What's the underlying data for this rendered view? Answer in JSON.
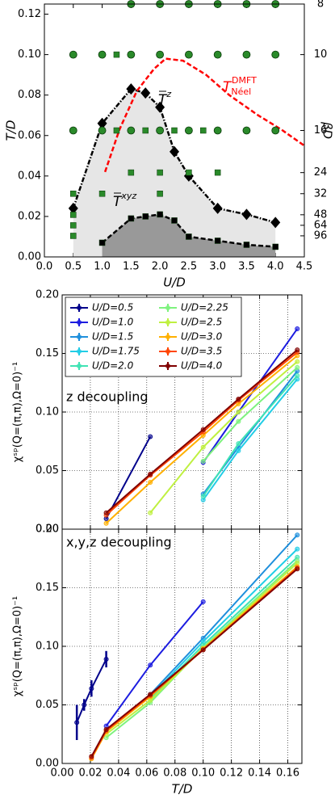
{
  "chart_data": [
    {
      "type": "line",
      "xlabel": "U/D",
      "ylabel": "T/D",
      "y2label": "βD",
      "xlim": [
        0,
        4.5
      ],
      "ylim": [
        0,
        0.125
      ],
      "grid": false,
      "xticks": [
        {
          "value": 0,
          "label": "0.0"
        },
        {
          "value": 0.5,
          "label": "0.5"
        },
        {
          "value": 1,
          "label": "1.0"
        },
        {
          "value": 1.5,
          "label": "1.5"
        },
        {
          "value": 2,
          "label": "2.0"
        },
        {
          "value": 2.5,
          "label": "2.5"
        },
        {
          "value": 3,
          "label": "3.0"
        },
        {
          "value": 3.5,
          "label": "3.5"
        },
        {
          "value": 4,
          "label": "4.0"
        },
        {
          "value": 4.5,
          "label": "4.5"
        }
      ],
      "yticks": [
        {
          "value": 0,
          "label": "0.00"
        },
        {
          "value": 0.02,
          "label": "0.02"
        },
        {
          "value": 0.04,
          "label": "0.04"
        },
        {
          "value": 0.06,
          "label": "0.06"
        },
        {
          "value": 0.08,
          "label": "0.08"
        },
        {
          "value": 0.1,
          "label": "0.10"
        },
        {
          "value": 0.12,
          "label": "0.12"
        }
      ],
      "y2ticks": [
        8,
        10,
        16,
        24,
        32,
        48,
        64,
        96
      ],
      "y2scale": "inverse",
      "annotations": [
        {
          "text": "T",
          "sup": "z",
          "overline": true
        },
        {
          "text": "T",
          "sup": "xyz",
          "overline": true
        },
        {
          "text": "T",
          "sup": "DMFT",
          "sub": "Néel",
          "color": "#ff0000"
        }
      ],
      "series": [
        {
          "x": [
            0.5,
            1.0,
            1.5,
            1.75,
            2.0,
            2.25,
            2.5,
            3.0,
            3.5,
            4.0
          ],
          "values": [
            0.024,
            0.066,
            0.083,
            0.081,
            0.074,
            0.052,
            0.04,
            0.024,
            0.021,
            0.017
          ],
          "color": "#000000",
          "linestyle": "dashdot",
          "marker": "diamond",
          "fill": "#e6e6e6"
        },
        {
          "x": [
            1.0,
            1.5,
            1.75,
            2.0,
            2.25,
            2.5,
            3.0,
            3.5,
            4.0
          ],
          "values": [
            0.007,
            0.019,
            0.02,
            0.021,
            0.018,
            0.01,
            0.008,
            0.006,
            0.005
          ],
          "color": "#000000",
          "linestyle": "dashed",
          "marker": "square",
          "fill": "#999999"
        },
        {
          "x": [
            1.05,
            1.3,
            1.6,
            1.9,
            2.1,
            2.4,
            2.8,
            3.2,
            3.7,
            4.1,
            4.5
          ],
          "values": [
            0.042,
            0.063,
            0.082,
            0.093,
            0.098,
            0.097,
            0.09,
            0.08,
            0.07,
            0.063,
            0.055
          ],
          "color": "#ff0000",
          "linestyle": "dashed",
          "marker": "none"
        },
        {
          "x": [
            1.5,
            2.0,
            2.5,
            3.0,
            3.5,
            4.0,
            0.5,
            1.0,
            1.5,
            2.0,
            2.5,
            3.0,
            3.5,
            4.0,
            0.5,
            1.0,
            1.5,
            2.0,
            2.5,
            3.0,
            3.5,
            4.0
          ],
          "values": [
            0.125,
            0.125,
            0.125,
            0.125,
            0.125,
            0.125,
            0.1,
            0.1,
            0.1,
            0.1,
            0.1,
            0.1,
            0.1,
            0.1,
            0.0625,
            0.0625,
            0.0625,
            0.0625,
            0.0625,
            0.0625,
            0.0625,
            0.0625
          ],
          "color": "#2a8a2a",
          "linestyle": "none",
          "marker": "octagon"
        },
        {
          "x": [
            1.25,
            1.25,
            1.75,
            2.25,
            2.75,
            1.5,
            2.0,
            2.5,
            3.0,
            0.5,
            1.0,
            2.0,
            0.5,
            0.5,
            0.5
          ],
          "values": [
            0.1,
            0.0625,
            0.0625,
            0.0625,
            0.0625,
            0.0417,
            0.0417,
            0.0417,
            0.0417,
            0.03125,
            0.03125,
            0.03125,
            0.0208,
            0.0156,
            0.0104
          ],
          "color": "#2a8a2a",
          "linestyle": "none",
          "marker": "square"
        }
      ]
    },
    {
      "type": "line",
      "ylabel": "χˢᵖ(Q=(π,π),Ω=0)⁻¹",
      "annotation": "z decoupling",
      "xlim": [
        0,
        0.17
      ],
      "ylim": [
        0,
        0.2
      ],
      "grid": true,
      "legend": "upper left",
      "xticklabels": false,
      "x": [
        0.0104,
        0.0156,
        0.0208,
        0.03125,
        0.0625,
        0.1,
        0.125,
        0.1667
      ],
      "xticks": [
        0,
        0.02,
        0.04,
        0.06,
        0.08,
        0.1,
        0.12,
        0.14,
        0.16
      ],
      "yticks": [
        {
          "value": 0,
          "label": "0.00"
        },
        {
          "value": 0.05,
          "label": "0.05"
        },
        {
          "value": 0.1,
          "label": "0.10"
        },
        {
          "value": 0.15,
          "label": "0.15"
        },
        {
          "value": 0.2,
          "label": "0.20"
        }
      ],
      "series": [
        {
          "name": "U/D=0.5",
          "color": "#00008b",
          "marker": "circle",
          "linestyle": "solid",
          "values": [
            null,
            null,
            null,
            0.009,
            0.079,
            null,
            null,
            null
          ]
        },
        {
          "name": "U/D=1.0",
          "color": "#1c1ce0",
          "marker": "circle",
          "linestyle": "solid",
          "values": [
            null,
            null,
            null,
            null,
            null,
            0.057,
            0.1,
            0.171
          ]
        },
        {
          "name": "U/D=1.5",
          "color": "#1e8fdc",
          "marker": "circle",
          "linestyle": "solid",
          "values": [
            null,
            null,
            null,
            null,
            null,
            0.03,
            0.07,
            0.135
          ]
        },
        {
          "name": "U/D=1.75",
          "color": "#22cde6",
          "marker": "circle",
          "linestyle": "solid",
          "values": [
            null,
            null,
            null,
            null,
            null,
            0.025,
            0.067,
            0.128
          ]
        },
        {
          "name": "U/D=2.0",
          "color": "#3fe3b4",
          "marker": "circle",
          "linestyle": "solid",
          "values": [
            null,
            null,
            null,
            null,
            null,
            0.028,
            0.073,
            0.131
          ]
        },
        {
          "name": "U/D=2.25",
          "color": "#7ef27e",
          "marker": "circle",
          "linestyle": "solid",
          "values": [
            null,
            null,
            null,
            null,
            null,
            0.058,
            0.092,
            0.138
          ]
        },
        {
          "name": "U/D=2.5",
          "color": "#bff040",
          "marker": "circle",
          "linestyle": "solid",
          "values": [
            null,
            null,
            null,
            null,
            0.014,
            0.07,
            0.1,
            0.143
          ]
        },
        {
          "name": "U/D=3.0",
          "color": "#ffb000",
          "marker": "circle",
          "linestyle": "solid",
          "values": [
            null,
            null,
            null,
            0.005,
            0.04,
            0.08,
            0.107,
            0.148
          ]
        },
        {
          "name": "U/D=3.5",
          "color": "#ff4500",
          "marker": "circle",
          "linestyle": "solid",
          "values": [
            null,
            null,
            null,
            0.012,
            0.046,
            0.083,
            0.11,
            0.151
          ]
        },
        {
          "name": "U/D=4.0",
          "color": "#800000",
          "marker": "circle",
          "linestyle": "solid",
          "values": [
            null,
            null,
            null,
            0.014,
            0.047,
            0.085,
            0.111,
            0.153
          ]
        }
      ]
    },
    {
      "type": "line",
      "xlabel": "T/D",
      "ylabel": "χˢᵖ(Q=(π,π),Ω=0)⁻¹",
      "annotation": "x,y,z decoupling",
      "xlim": [
        0,
        0.17
      ],
      "ylim": [
        0,
        0.2
      ],
      "grid": true,
      "x": [
        0.0104,
        0.0156,
        0.0208,
        0.03125,
        0.0625,
        0.1,
        0.1667
      ],
      "xticks": [
        {
          "value": 0,
          "label": "0.00"
        },
        {
          "value": 0.02,
          "label": "0.02"
        },
        {
          "value": 0.04,
          "label": "0.04"
        },
        {
          "value": 0.06,
          "label": "0.06"
        },
        {
          "value": 0.08,
          "label": "0.08"
        },
        {
          "value": 0.1,
          "label": "0.10"
        },
        {
          "value": 0.12,
          "label": "0.12"
        },
        {
          "value": 0.14,
          "label": "0.14"
        },
        {
          "value": 0.16,
          "label": "0.16"
        }
      ],
      "yticks": [
        {
          "value": 0,
          "label": "0.00"
        },
        {
          "value": 0.05,
          "label": "0.05"
        },
        {
          "value": 0.1,
          "label": "0.10"
        },
        {
          "value": 0.15,
          "label": "0.15"
        },
        {
          "value": 0.2,
          "label": "0.20"
        }
      ],
      "series": [
        {
          "color": "#00008b",
          "marker": "circle",
          "linestyle": "solid",
          "values": [
            0.035,
            0.05,
            0.064,
            0.089,
            null,
            null,
            null
          ],
          "errors": [
            0.015,
            0.005,
            0.007,
            0.007,
            null,
            null,
            null
          ]
        },
        {
          "color": "#1c1ce0",
          "marker": "circle",
          "linestyle": "solid",
          "values": [
            null,
            null,
            null,
            0.032,
            0.084,
            0.138,
            null
          ]
        },
        {
          "color": "#1e8fdc",
          "marker": "circle",
          "linestyle": "solid",
          "values": [
            null,
            null,
            null,
            null,
            0.059,
            0.107,
            0.195
          ]
        },
        {
          "color": "#22cde6",
          "marker": "circle",
          "linestyle": "solid",
          "values": [
            null,
            null,
            null,
            null,
            0.057,
            0.104,
            0.183
          ]
        },
        {
          "color": "#3fe3b4",
          "marker": "circle",
          "linestyle": "solid",
          "values": [
            null,
            null,
            null,
            null,
            0.055,
            0.101,
            0.176
          ]
        },
        {
          "color": "#7ef27e",
          "marker": "circle",
          "linestyle": "solid",
          "values": [
            null,
            null,
            null,
            0.022,
            0.052,
            0.099,
            0.173
          ]
        },
        {
          "color": "#bff040",
          "marker": "circle",
          "linestyle": "solid",
          "values": [
            null,
            null,
            null,
            0.025,
            0.054,
            0.098,
            0.171
          ]
        },
        {
          "color": "#ffb000",
          "marker": "circle",
          "linestyle": "solid",
          "values": [
            null,
            null,
            0.004,
            0.027,
            0.057,
            0.098,
            0.168
          ]
        },
        {
          "color": "#ff4500",
          "marker": "circle",
          "linestyle": "solid",
          "values": [
            null,
            null,
            0.005,
            0.028,
            0.058,
            0.097,
            0.167
          ]
        },
        {
          "color": "#800000",
          "marker": "circle",
          "linestyle": "solid",
          "values": [
            null,
            null,
            0.006,
            0.029,
            0.059,
            0.097,
            0.166
          ]
        }
      ]
    }
  ]
}
